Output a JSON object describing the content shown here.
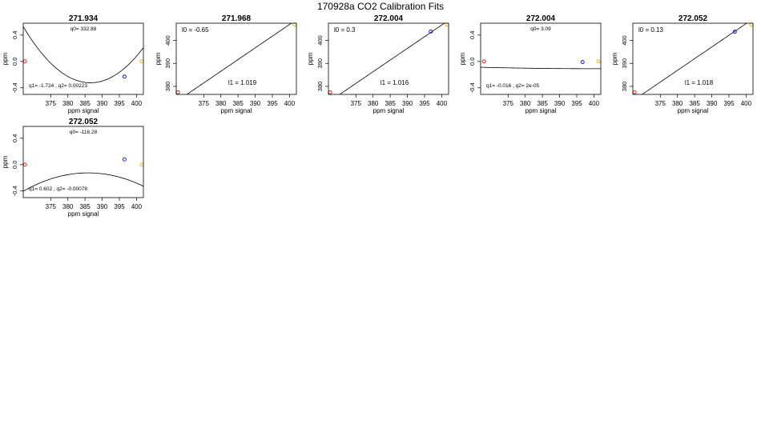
{
  "figure": {
    "title": "170928a   CO2 Calibration Fits"
  },
  "marker_colors": {
    "low": "#ff0000",
    "mid": "#0000ff",
    "high": "#ffa500"
  },
  "chart_data": [
    {
      "type": "line",
      "title": "271.934",
      "kind": "residual",
      "xlabel": "ppm signal",
      "ylabel": "ppm",
      "xlim": [
        367.0,
        402.0
      ],
      "ylim": [
        -0.5,
        0.58
      ],
      "xticks": [
        375,
        380,
        385,
        390,
        395,
        400
      ],
      "yticks": [
        -0.4,
        0.0,
        0.4
      ],
      "coeffs": {
        "q0": 332.88,
        "q1": -1.724,
        "q2": 0.00223
      },
      "labels": [
        {
          "text": "q0= 332.88",
          "pos": "top"
        },
        {
          "text": "q1= -1.724 , q2= 0.00223",
          "pos": "bottom-left"
        }
      ],
      "points": [
        {
          "x": 367.5,
          "y": 0.0,
          "color": "low"
        },
        {
          "x": 396.5,
          "y": -0.23,
          "color": "mid"
        },
        {
          "x": 401.5,
          "y": 0.0,
          "color": "high"
        }
      ]
    },
    {
      "type": "line",
      "title": "271.968",
      "kind": "linear",
      "xlabel": "ppm signal",
      "ylabel": "ppm",
      "xlim": [
        367.0,
        402.0
      ],
      "ylim": [
        376.5,
        407.5
      ],
      "xticks": [
        375,
        380,
        385,
        390,
        395,
        400
      ],
      "yticks": [
        380,
        390,
        400
      ],
      "coeffs": {
        "l0": -0.65,
        "l1": 1.019
      },
      "labels": [
        {
          "text": "l0 =  -0.65",
          "pos": "top-left"
        },
        {
          "text": "l1 =  1.019",
          "pos": "bottom-center"
        }
      ],
      "points": [
        {
          "x": 367.5,
          "y": 377.4,
          "color": "low"
        },
        {
          "x": 401.5,
          "y": 406.9,
          "color": "high"
        }
      ]
    },
    {
      "type": "line",
      "title": "272.004",
      "kind": "linear",
      "xlabel": "ppm signal",
      "ylabel": "ppm",
      "xlim": [
        367.0,
        402.0
      ],
      "ylim": [
        376.5,
        407.5
      ],
      "xticks": [
        375,
        380,
        385,
        390,
        395,
        400
      ],
      "yticks": [
        380,
        390,
        400
      ],
      "coeffs": {
        "l0": 0.3,
        "l1": 1.016
      },
      "labels": [
        {
          "text": "l0 =  0.3",
          "pos": "top-left"
        },
        {
          "text": "l1 =  1.016",
          "pos": "bottom-center"
        }
      ],
      "points": [
        {
          "x": 367.5,
          "y": 377.4,
          "color": "low"
        },
        {
          "x": 396.8,
          "y": 403.9,
          "color": "mid"
        },
        {
          "x": 401.5,
          "y": 406.9,
          "color": "high"
        }
      ]
    },
    {
      "type": "line",
      "title": "272.004",
      "kind": "residual",
      "xlabel": "ppm signal",
      "ylabel": "ppm",
      "xlim": [
        367.0,
        402.0
      ],
      "ylim": [
        -0.5,
        0.58
      ],
      "xticks": [
        375,
        380,
        385,
        390,
        395,
        400
      ],
      "yticks": [
        -0.4,
        0.0,
        0.4
      ],
      "coeffs": {
        "q0": 3.09,
        "q1": -0.016,
        "q2": 2e-05
      },
      "labels": [
        {
          "text": "q0= 3.09",
          "pos": "top"
        },
        {
          "text": "q1= -0.016 , q2= 2e-05",
          "pos": "bottom-left"
        }
      ],
      "points": [
        {
          "x": 368.0,
          "y": 0.0,
          "color": "low"
        },
        {
          "x": 396.7,
          "y": -0.01,
          "color": "mid"
        },
        {
          "x": 401.3,
          "y": 0.0,
          "color": "high"
        }
      ]
    },
    {
      "type": "line",
      "title": "272.052",
      "kind": "linear",
      "xlabel": "ppm signal",
      "ylabel": "ppm",
      "xlim": [
        367.0,
        402.0
      ],
      "ylim": [
        376.5,
        407.5
      ],
      "xticks": [
        375,
        380,
        385,
        390,
        395,
        400
      ],
      "yticks": [
        380,
        390,
        400
      ],
      "coeffs": {
        "l0": 0.13,
        "l1": 1.018
      },
      "labels": [
        {
          "text": "l0 =  0.13",
          "pos": "top-left"
        },
        {
          "text": "l1 =  1.018",
          "pos": "bottom-center"
        }
      ],
      "points": [
        {
          "x": 367.5,
          "y": 377.4,
          "color": "low"
        },
        {
          "x": 396.7,
          "y": 403.8,
          "color": "mid"
        },
        {
          "x": 401.5,
          "y": 406.9,
          "color": "high"
        }
      ]
    },
    {
      "type": "line",
      "title": "272.052",
      "kind": "residual",
      "xlabel": "ppm signal",
      "ylabel": "ppm",
      "xlim": [
        367.0,
        402.0
      ],
      "ylim": [
        -0.5,
        0.58
      ],
      "xticks": [
        375,
        380,
        385,
        390,
        395,
        400
      ],
      "yticks": [
        -0.4,
        0.0,
        0.4
      ],
      "coeffs": {
        "q0": -116.28,
        "q1": 0.602,
        "q2": -0.00078
      },
      "labels": [
        {
          "text": "q0= -116.28",
          "pos": "top"
        },
        {
          "text": "q1= 0.602 , q2= -0.00078",
          "pos": "bottom-left"
        }
      ],
      "points": [
        {
          "x": 367.5,
          "y": 0.0,
          "color": "low"
        },
        {
          "x": 396.5,
          "y": 0.08,
          "color": "mid"
        },
        {
          "x": 401.5,
          "y": 0.0,
          "color": "high"
        }
      ]
    }
  ]
}
